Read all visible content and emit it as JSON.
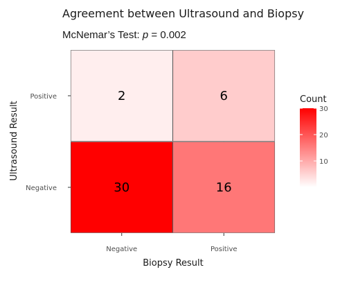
{
  "chart_data": {
    "type": "heatmap",
    "title": "Agreement between Ultrasound and Biopsy",
    "subtitle_prefix": "McNemar’s Test: ",
    "subtitle_var": "p",
    "subtitle_suffix": " = 0.002",
    "xlabel": "Biopsy Result",
    "ylabel": "Ultrasound Result",
    "x_categories": [
      "Negative",
      "Positive"
    ],
    "y_categories": [
      "Negative",
      "Positive"
    ],
    "cells": [
      {
        "x": "Negative",
        "y": "Positive",
        "value": 2
      },
      {
        "x": "Positive",
        "y": "Positive",
        "value": 6
      },
      {
        "x": "Negative",
        "y": "Negative",
        "value": 30
      },
      {
        "x": "Positive",
        "y": "Negative",
        "value": 16
      }
    ],
    "color_scale": {
      "low": "#ffffff",
      "high": "#ff0000",
      "range": [
        0,
        30
      ]
    },
    "legend": {
      "title": "Count",
      "ticks": [
        10,
        20,
        30
      ],
      "placement": "right"
    },
    "grid": true,
    "grid_color": "#ebebeb",
    "panel_background": "#ffffff"
  }
}
